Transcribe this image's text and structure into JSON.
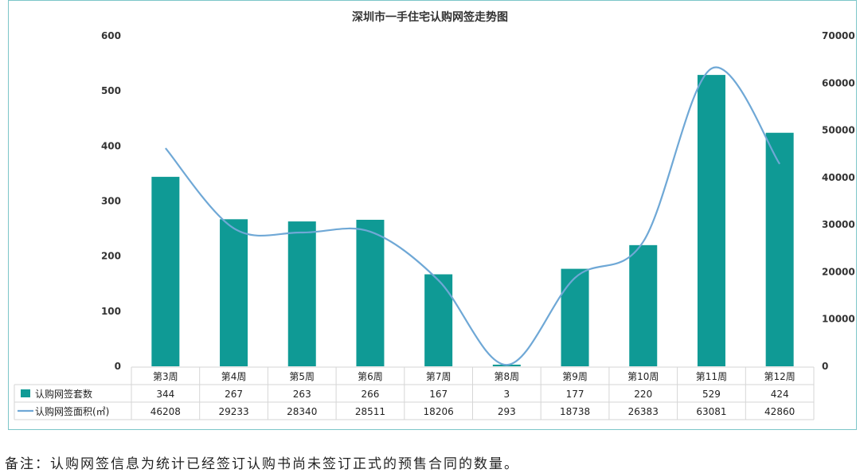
{
  "chart_data": {
    "type": "bar",
    "title": "深圳市一手住宅认购网签走势图",
    "categories": [
      "第3周",
      "第4周",
      "第5周",
      "第6周",
      "第7周",
      "第8周",
      "第9周",
      "第10周",
      "第11周",
      "第12周"
    ],
    "series": [
      {
        "name": "认购网签套数",
        "type": "bar",
        "axis": "left",
        "color": "#0f9a95",
        "values": [
          344,
          267,
          263,
          266,
          167,
          3,
          177,
          220,
          529,
          424
        ]
      },
      {
        "name": "认购网签面积(㎡)",
        "type": "line",
        "axis": "right",
        "color": "#6fa8d6",
        "values": [
          46208,
          29233,
          28340,
          28511,
          18206,
          293,
          18738,
          26383,
          63081,
          42860
        ]
      }
    ],
    "y_left": {
      "min": 0,
      "max": 600,
      "ticks": [
        "0",
        "100",
        "200",
        "300",
        "400",
        "500",
        "600"
      ]
    },
    "y_right": {
      "min": 0,
      "max": 70000,
      "ticks": [
        "0",
        "10000",
        "20000",
        "30000",
        "40000",
        "50000",
        "60000",
        "70000"
      ]
    },
    "grid": false,
    "legend_placement": "data-table-below"
  },
  "note": "备注：认购网签信息为统计已经签订认购书尚未签订正式的预售合同的数量。"
}
